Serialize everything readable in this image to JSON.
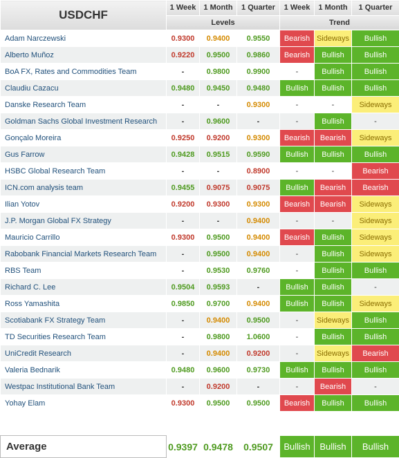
{
  "header": {
    "title": "USDCHF",
    "timeframes": [
      "1 Week",
      "1 Month",
      "1 Quarter"
    ],
    "levels_label": "Levels",
    "trend_label": "Trend"
  },
  "colors": {
    "bullish": "#5cb42a",
    "bearish": "#e0494e",
    "sideways": "#fbee79",
    "level_up": "#4e9a1f",
    "level_down": "#c0392b",
    "level_flat": "#d48a00",
    "link": "#1f4f7a"
  },
  "rows": [
    {
      "name": "Adam Narczewski",
      "levels": [
        "0.9300",
        "0.9400",
        "0.9550"
      ],
      "level_colors": [
        "red",
        "orange",
        "green"
      ],
      "trends": [
        "Bearish",
        "Sideways",
        "Bullish"
      ]
    },
    {
      "name": "Alberto Muñoz",
      "levels": [
        "0.9220",
        "0.9500",
        "0.9860"
      ],
      "level_colors": [
        "red",
        "green",
        "green"
      ],
      "trends": [
        "Bearish",
        "Bullish",
        "Bullish"
      ]
    },
    {
      "name": "BoA FX, Rates and Commodities Team",
      "levels": [
        "-",
        "0.9800",
        "0.9900"
      ],
      "level_colors": [
        "dash",
        "green",
        "green"
      ],
      "trends": [
        "-",
        "Bullish",
        "Bullish"
      ]
    },
    {
      "name": "Claudiu Cazacu",
      "levels": [
        "0.9480",
        "0.9450",
        "0.9480"
      ],
      "level_colors": [
        "green",
        "green",
        "green"
      ],
      "trends": [
        "Bullish",
        "Bullish",
        "Bullish"
      ]
    },
    {
      "name": "Danske Research Team",
      "levels": [
        "-",
        "-",
        "0.9300"
      ],
      "level_colors": [
        "dash",
        "dash",
        "orange"
      ],
      "trends": [
        "-",
        "-",
        "Sideways"
      ]
    },
    {
      "name": "Goldman Sachs Global Investment Research",
      "levels": [
        "-",
        "0.9600",
        "-"
      ],
      "level_colors": [
        "dash",
        "green",
        "dash"
      ],
      "trends": [
        "-",
        "Bullish",
        "-"
      ]
    },
    {
      "name": "Gonçalo Moreira",
      "levels": [
        "0.9250",
        "0.9200",
        "0.9300"
      ],
      "level_colors": [
        "red",
        "red",
        "orange"
      ],
      "trends": [
        "Bearish",
        "Bearish",
        "Sideways"
      ]
    },
    {
      "name": "Gus Farrow",
      "levels": [
        "0.9428",
        "0.9515",
        "0.9590"
      ],
      "level_colors": [
        "green",
        "green",
        "green"
      ],
      "trends": [
        "Bullish",
        "Bullish",
        "Bullish"
      ]
    },
    {
      "name": "HSBC Global Research Team",
      "levels": [
        "-",
        "-",
        "0.8900"
      ],
      "level_colors": [
        "dash",
        "dash",
        "red"
      ],
      "trends": [
        "-",
        "-",
        "Bearish"
      ]
    },
    {
      "name": "ICN.com analysis team",
      "levels": [
        "0.9455",
        "0.9075",
        "0.9075"
      ],
      "level_colors": [
        "green",
        "red",
        "red"
      ],
      "trends": [
        "Bullish",
        "Bearish",
        "Bearish"
      ]
    },
    {
      "name": "Ilian Yotov",
      "levels": [
        "0.9200",
        "0.9300",
        "0.9300"
      ],
      "level_colors": [
        "red",
        "red",
        "orange"
      ],
      "trends": [
        "Bearish",
        "Bearish",
        "Sideways"
      ]
    },
    {
      "name": "J.P. Morgan Global FX Strategy",
      "levels": [
        "-",
        "-",
        "0.9400"
      ],
      "level_colors": [
        "dash",
        "dash",
        "orange"
      ],
      "trends": [
        "-",
        "-",
        "Sideways"
      ]
    },
    {
      "name": "Mauricio Carrillo",
      "levels": [
        "0.9300",
        "0.9500",
        "0.9400"
      ],
      "level_colors": [
        "red",
        "green",
        "orange"
      ],
      "trends": [
        "Bearish",
        "Bullish",
        "Sideways"
      ]
    },
    {
      "name": "Rabobank Financial Markets Research Team",
      "levels": [
        "-",
        "0.9500",
        "0.9400"
      ],
      "level_colors": [
        "dash",
        "green",
        "orange"
      ],
      "trends": [
        "-",
        "Bullish",
        "Sideways"
      ]
    },
    {
      "name": "RBS Team",
      "levels": [
        "-",
        "0.9530",
        "0.9760"
      ],
      "level_colors": [
        "dash",
        "green",
        "green"
      ],
      "trends": [
        "-",
        "Bullish",
        "Bullish"
      ]
    },
    {
      "name": "Richard C. Lee",
      "levels": [
        "0.9504",
        "0.9593",
        "-"
      ],
      "level_colors": [
        "green",
        "green",
        "dash"
      ],
      "trends": [
        "Bullish",
        "Bullish",
        "-"
      ]
    },
    {
      "name": "Ross Yamashita",
      "levels": [
        "0.9850",
        "0.9700",
        "0.9400"
      ],
      "level_colors": [
        "green",
        "green",
        "orange"
      ],
      "trends": [
        "Bullish",
        "Bullish",
        "Sideways"
      ]
    },
    {
      "name": "Scotiabank FX Strategy Team",
      "levels": [
        "-",
        "0.9400",
        "0.9500"
      ],
      "level_colors": [
        "dash",
        "orange",
        "green"
      ],
      "trends": [
        "-",
        "Sideways",
        "Bullish"
      ]
    },
    {
      "name": "TD Securities Research Team",
      "levels": [
        "-",
        "0.9800",
        "1.0600"
      ],
      "level_colors": [
        "dash",
        "green",
        "green"
      ],
      "trends": [
        "-",
        "Bullish",
        "Bullish"
      ]
    },
    {
      "name": "UniCredit Research",
      "levels": [
        "-",
        "0.9400",
        "0.9200"
      ],
      "level_colors": [
        "dash",
        "orange",
        "red"
      ],
      "trends": [
        "-",
        "Sideways",
        "Bearish"
      ]
    },
    {
      "name": "Valeria Bednarik",
      "levels": [
        "0.9480",
        "0.9600",
        "0.9730"
      ],
      "level_colors": [
        "green",
        "green",
        "green"
      ],
      "trends": [
        "Bullish",
        "Bullish",
        "Bullish"
      ]
    },
    {
      "name": "Westpac Institutional Bank Team",
      "levels": [
        "-",
        "0.9200",
        "-"
      ],
      "level_colors": [
        "dash",
        "red",
        "dash"
      ],
      "trends": [
        "-",
        "Bearish",
        "-"
      ]
    },
    {
      "name": "Yohay Elam",
      "levels": [
        "0.9300",
        "0.9500",
        "0.9500"
      ],
      "level_colors": [
        "red",
        "green",
        "green"
      ],
      "trends": [
        "Bearish",
        "Bullish",
        "Bullish"
      ]
    }
  ],
  "average": {
    "label": "Average",
    "levels": [
      "0.9397",
      "0.9478",
      "0.9507"
    ],
    "trends": [
      "Bullish",
      "Bullish",
      "Bullish"
    ]
  }
}
